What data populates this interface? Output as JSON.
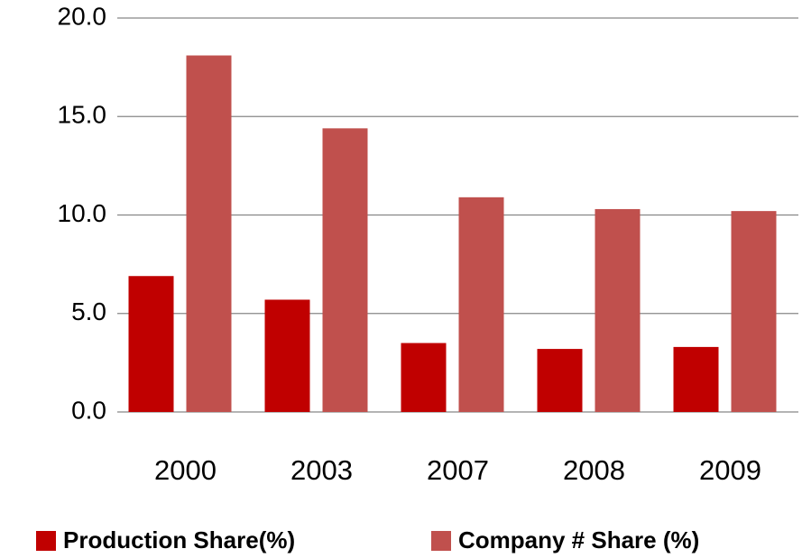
{
  "chart_data": {
    "type": "bar",
    "categories": [
      "2000",
      "2003",
      "2007",
      "2008",
      "2009"
    ],
    "series": [
      {
        "name": "Production Share(%)",
        "color": "#c00000",
        "values": [
          6.9,
          5.7,
          3.5,
          3.2,
          3.3
        ]
      },
      {
        "name": "Company # Share (%)",
        "color": "#c0504d",
        "values": [
          18.1,
          14.4,
          10.9,
          10.3,
          10.2
        ]
      }
    ],
    "ylim": [
      0,
      20
    ],
    "yticks": [
      {
        "value": 0,
        "label": "0.0"
      },
      {
        "value": 5,
        "label": "5.0"
      },
      {
        "value": 10,
        "label": "10.0"
      },
      {
        "value": 15,
        "label": "15.0"
      },
      {
        "value": 20,
        "label": "20.0"
      }
    ],
    "grid": true,
    "legend": "bottom"
  }
}
